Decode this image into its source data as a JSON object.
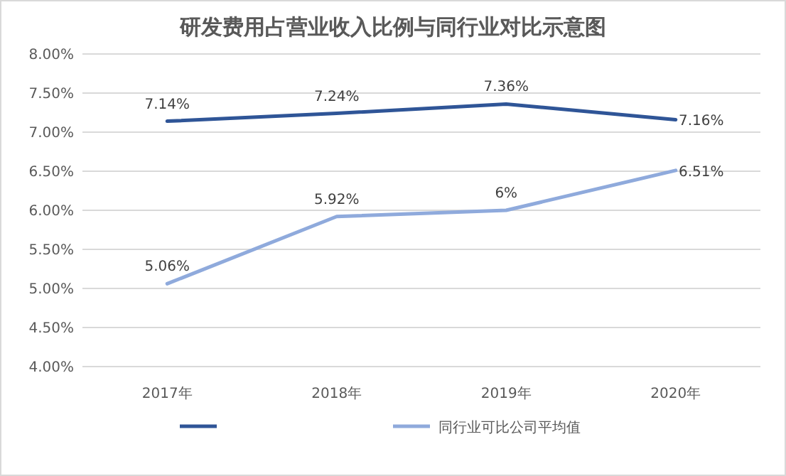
{
  "chart_data": {
    "type": "line",
    "title": "研发费用占营业收入比例与同行业对比示意图",
    "categories": [
      "2017年",
      "2018年",
      "2019年",
      "2020年"
    ],
    "series": [
      {
        "color": "#2f5597",
        "values": [
          7.14,
          7.24,
          7.36,
          7.16
        ],
        "value_labels": [
          "7.14%",
          "7.24%",
          "7.36%",
          "7.16%"
        ]
      },
      {
        "name": "同行业可比公司平均值",
        "color": "#8faadc",
        "values": [
          5.06,
          5.92,
          6,
          6.51
        ],
        "value_labels": [
          "5.06%",
          "5.92%",
          "6%",
          "6.51%"
        ]
      }
    ],
    "ylim": [
      4,
      8
    ],
    "yticks": [
      {
        "value": 4,
        "label": "4.00%"
      },
      {
        "value": 4.5,
        "label": "4.50%"
      },
      {
        "value": 5,
        "label": "5.00%"
      },
      {
        "value": 5.5,
        "label": "5.50%"
      },
      {
        "value": 6,
        "label": "6.00%"
      },
      {
        "value": 6.5,
        "label": "6.50%"
      },
      {
        "value": 7,
        "label": "7.00%"
      },
      {
        "value": 7.5,
        "label": "7.50%"
      },
      {
        "value": 8,
        "label": "8.00%"
      }
    ],
    "grid": "y",
    "legend": "bottom",
    "marker": "none",
    "line_style": "solid"
  }
}
